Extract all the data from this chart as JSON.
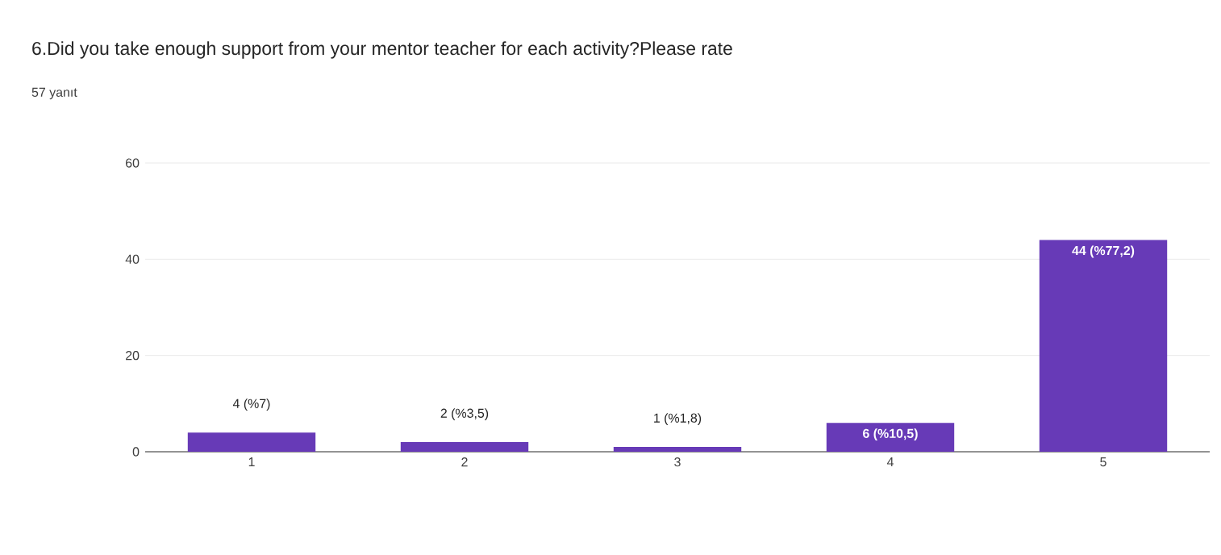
{
  "chart_data": {
    "type": "bar",
    "title": "6.Did you take enough support from your mentor teacher for each activity?Please rate",
    "subtitle": "57 yanıt",
    "categories": [
      "1",
      "2",
      "3",
      "4",
      "5"
    ],
    "values": [
      4,
      2,
      1,
      6,
      44
    ],
    "value_labels": [
      "4 (%7)",
      "2 (%3,5)",
      "1 (%1,8)",
      "6 (%10,5)",
      "44 (%77,2)"
    ],
    "color": "#673ab7",
    "ylim": [
      0,
      60
    ],
    "yticks": [
      0,
      20,
      40,
      60
    ],
    "grid": "y"
  }
}
